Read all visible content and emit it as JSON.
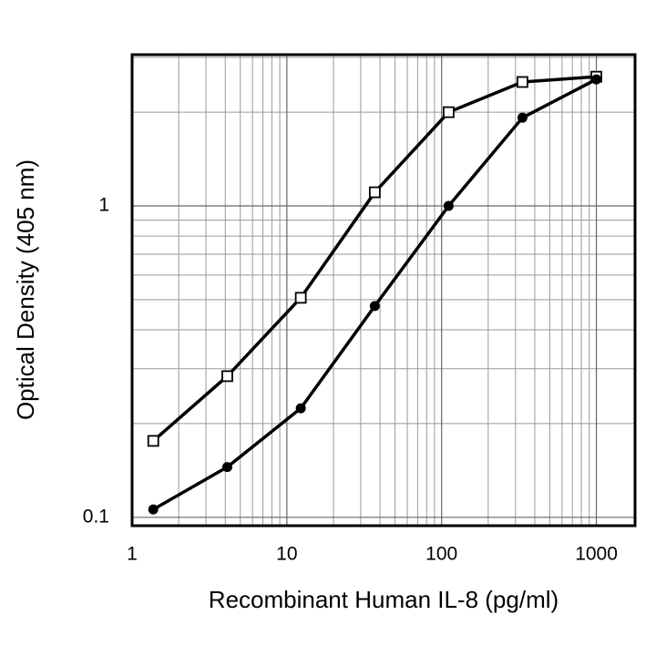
{
  "chart_data": {
    "type": "line",
    "x_label": "Recombinant Human IL-8 (pg/ml)",
    "y_label": "Optical Density (405 nm)",
    "x": [
      1.37,
      4.12,
      12.3,
      37,
      111,
      333,
      1000
    ],
    "series": [
      {
        "color": "#000000",
        "marker": "square-open",
        "values": [
          0.176,
          0.284,
          0.507,
          1.106,
          2.0,
          2.5,
          2.6
        ]
      },
      {
        "color": "#000000",
        "marker": "circle-filled",
        "values": [
          0.106,
          0.145,
          0.224,
          0.477,
          1.0,
          1.92,
          2.55
        ]
      }
    ],
    "x_log": true,
    "y_log": true,
    "grid": true,
    "xlim": [
      1,
      1778
    ],
    "ylim": [
      0.094,
      3.06
    ],
    "xticks": [
      1,
      10,
      100,
      1000
    ],
    "yticks": [
      0.1,
      1
    ],
    "x_minor_ticks": [
      2,
      3,
      4,
      5,
      6,
      7,
      8,
      9,
      20,
      30,
      40,
      50,
      60,
      70,
      80,
      90,
      200,
      300,
      400,
      500,
      600,
      700,
      800,
      900
    ],
    "y_minor_ticks": [
      0.2,
      0.3,
      0.4,
      0.5,
      0.6,
      0.7,
      0.8,
      0.9,
      2,
      3
    ]
  }
}
